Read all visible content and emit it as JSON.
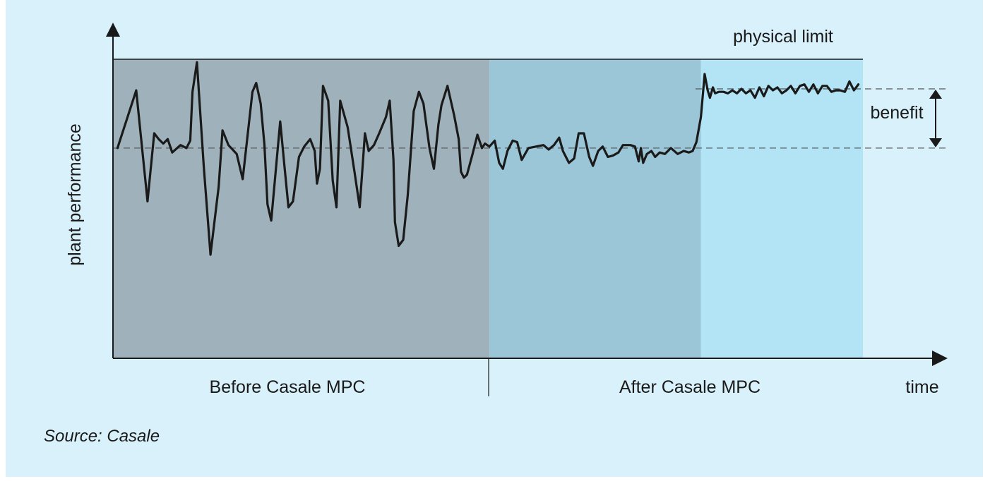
{
  "chart_data": {
    "type": "line",
    "ylabel": "plant performance",
    "xlabel": "time",
    "limit_label": "physical limit",
    "benefit_label": "benefit",
    "source": "Source: Casale",
    "regions": [
      {
        "name": "Before Casale MPC",
        "label": "Before Casale MPC",
        "color": "#9fb1ba"
      },
      {
        "name": "After Casale MPC",
        "label": "After Casale MPC",
        "color": "#9bc6d8"
      },
      {
        "name": "After Casale MPC (optimized)",
        "color": "#b2e4f6"
      }
    ],
    "colors": {
      "line": "#1a1a1a",
      "panel": "#d9f1fa",
      "dashed": "#555555"
    },
    "series": [
      {
        "values": [
          [
            0.6,
            71
          ],
          [
            3.1,
            90.5
          ],
          [
            4.6,
            53
          ],
          [
            5.5,
            76
          ],
          [
            6.1,
            74
          ],
          [
            6.7,
            72.5
          ],
          [
            7.3,
            74
          ],
          [
            7.9,
            69.5
          ],
          [
            9.0,
            72
          ],
          [
            9.8,
            71
          ],
          [
            10.3,
            73.5
          ],
          [
            10.6,
            90
          ],
          [
            11.2,
            100
          ],
          [
            12.1,
            65
          ],
          [
            13.0,
            35
          ],
          [
            14.1,
            58
          ],
          [
            14.6,
            77
          ],
          [
            15.4,
            72
          ],
          [
            16.5,
            69
          ],
          [
            17.3,
            60.5
          ],
          [
            18.6,
            90
          ],
          [
            19.1,
            93
          ],
          [
            19.7,
            86
          ],
          [
            20.2,
            72
          ],
          [
            20.6,
            52
          ],
          [
            21.1,
            46.5
          ],
          [
            21.8,
            66
          ],
          [
            22.3,
            80
          ],
          [
            22.9,
            64
          ],
          [
            23.4,
            51
          ],
          [
            24.0,
            53
          ],
          [
            24.8,
            68
          ],
          [
            25.5,
            71.5
          ],
          [
            26.3,
            74
          ],
          [
            26.9,
            70
          ],
          [
            27.2,
            59
          ],
          [
            27.6,
            64
          ],
          [
            28.0,
            92
          ],
          [
            28.7,
            87
          ],
          [
            29.3,
            60
          ],
          [
            29.8,
            51
          ],
          [
            30.3,
            87
          ],
          [
            31.3,
            78
          ],
          [
            32.2,
            63
          ],
          [
            32.9,
            51
          ],
          [
            33.6,
            76
          ],
          [
            34.1,
            70
          ],
          [
            34.8,
            72
          ],
          [
            35.5,
            76
          ],
          [
            36.4,
            81.5
          ],
          [
            36.9,
            87
          ],
          [
            37.4,
            67
          ],
          [
            37.6,
            46
          ],
          [
            38.1,
            38
          ],
          [
            38.7,
            40
          ],
          [
            39.3,
            55
          ],
          [
            40.1,
            83.5
          ],
          [
            40.8,
            90
          ],
          [
            41.4,
            86
          ],
          [
            42.2,
            71
          ],
          [
            42.8,
            64
          ],
          [
            43.4,
            79
          ],
          [
            43.8,
            85.5
          ],
          [
            44.6,
            92
          ],
          [
            45.5,
            82
          ],
          [
            46.1,
            74
          ],
          [
            46.4,
            63
          ],
          [
            46.8,
            61
          ],
          [
            47.2,
            62
          ],
          [
            47.9,
            68.5
          ],
          [
            48.6,
            75.5
          ],
          [
            49.2,
            71
          ],
          [
            49.6,
            72.5
          ],
          [
            50.2,
            71.5
          ],
          [
            50.9,
            73.5
          ],
          [
            51.5,
            66
          ],
          [
            52.0,
            64
          ],
          [
            52.6,
            70
          ],
          [
            53.3,
            73.5
          ],
          [
            53.9,
            73
          ],
          [
            54.5,
            67
          ],
          [
            55.4,
            71
          ],
          [
            56.4,
            71.5
          ],
          [
            57.4,
            72
          ],
          [
            58.1,
            70.5
          ],
          [
            58.8,
            72
          ],
          [
            59.5,
            74.5
          ],
          [
            60.0,
            70
          ],
          [
            60.8,
            66
          ],
          [
            61.5,
            67.5
          ],
          [
            62.1,
            76
          ],
          [
            62.8,
            76
          ],
          [
            63.5,
            68
          ],
          [
            64.0,
            65
          ],
          [
            64.7,
            70
          ],
          [
            65.3,
            71.5
          ],
          [
            66.0,
            68
          ],
          [
            66.7,
            68.5
          ],
          [
            67.4,
            69.5
          ],
          [
            68.0,
            72
          ],
          [
            69.0,
            72
          ],
          [
            69.6,
            71.5
          ],
          [
            70.1,
            66.5
          ],
          [
            70.4,
            71
          ],
          [
            70.7,
            66
          ],
          [
            71.2,
            69
          ],
          [
            71.8,
            70
          ],
          [
            72.3,
            68
          ],
          [
            72.9,
            69.5
          ],
          [
            73.6,
            69
          ],
          [
            74.4,
            71
          ],
          [
            75.3,
            69
          ],
          [
            76.1,
            70
          ],
          [
            76.8,
            69.5
          ],
          [
            77.3,
            70
          ],
          [
            77.8,
            73
          ],
          [
            78.4,
            81.5
          ],
          [
            78.9,
            96
          ],
          [
            79.3,
            90.5
          ],
          [
            79.6,
            88
          ],
          [
            80.0,
            91.5
          ],
          [
            80.3,
            89.5
          ],
          [
            80.8,
            90
          ],
          [
            81.4,
            90
          ],
          [
            82.0,
            89.5
          ],
          [
            82.6,
            90.5
          ],
          [
            83.2,
            89.5
          ],
          [
            83.8,
            91
          ],
          [
            84.4,
            89.5
          ],
          [
            85.0,
            90.5
          ],
          [
            85.6,
            88
          ],
          [
            86.2,
            91.5
          ],
          [
            86.8,
            88.5
          ],
          [
            87.4,
            92
          ],
          [
            88.0,
            90.5
          ],
          [
            88.6,
            91.5
          ],
          [
            89.2,
            89.5
          ],
          [
            89.8,
            90.5
          ],
          [
            90.4,
            92
          ],
          [
            91.0,
            89.5
          ],
          [
            91.6,
            92
          ],
          [
            92.2,
            92.5
          ],
          [
            92.8,
            90
          ],
          [
            93.4,
            92.5
          ],
          [
            94.0,
            89.5
          ],
          [
            94.6,
            92
          ],
          [
            95.2,
            92
          ],
          [
            95.8,
            90
          ],
          [
            96.4,
            90.5
          ],
          [
            97.0,
            90.5
          ],
          [
            97.6,
            90
          ],
          [
            98.2,
            93.5
          ],
          [
            98.8,
            90.5
          ],
          [
            99.4,
            92.5
          ]
        ]
      }
    ],
    "reference_lines": {
      "baseline": 71,
      "improved": 91,
      "physical_limit": 101
    }
  }
}
